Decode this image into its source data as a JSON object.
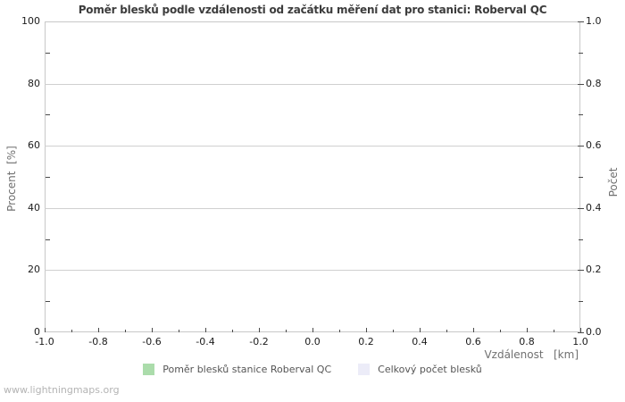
{
  "title": "Poměr blesků podle vzdálenosti od začátku měření dat pro stanici: Roberval QC",
  "watermark": "www.lightningmaps.org",
  "axes": {
    "left_label": "Procent  [%]",
    "right_label": "Počet",
    "bottom_label": "Vzdálenost   [km]"
  },
  "legend": {
    "items": [
      {
        "label": "Poměr blesků stanice Roberval QC",
        "color": "#abdcab"
      },
      {
        "label": "Celkový počet blesků",
        "color": "#ececf8"
      }
    ]
  },
  "colors": {
    "background": "#ffffff",
    "grid": "#d0d0d0",
    "plot_border": "#c8c8c8",
    "tick_mark": "#4a4a4a",
    "title_text": "#3c3c3c",
    "tick_text": "#1c1c1c",
    "axis_label_text": "#707070",
    "legend_text": "#555555",
    "watermark_text": "#b4b4b4"
  },
  "chart_data": {
    "type": "bar",
    "title": "Poměr blesků podle vzdálenosti od začátku měření dat pro stanici: Roberval QC",
    "xlabel": "Vzdálenost [km]",
    "ylabel_left": "Procent [%]",
    "ylabel_right": "Počet",
    "xlim": [
      -1.0,
      1.0
    ],
    "ylim_left": [
      0,
      100
    ],
    "ylim_right": [
      0.0,
      1.0
    ],
    "x_tick_labels": [
      "-1.0",
      "-0.8",
      "-0.6",
      "-0.4",
      "-0.2",
      "0.0",
      "0.2",
      "0.4",
      "0.6",
      "0.8",
      "1.0"
    ],
    "y_tick_labels_left": [
      "0",
      "20",
      "40",
      "60",
      "80",
      "100"
    ],
    "y_tick_labels_right": [
      "0.0",
      "0.2",
      "0.4",
      "0.6",
      "0.8",
      "1.0"
    ],
    "grid": "horizontal-major-only",
    "legend_position": "bottom-center",
    "series": [
      {
        "name": "Poměr blesků stanice Roberval QC",
        "color": "#abdcab",
        "axis": "left",
        "values": []
      },
      {
        "name": "Celkový počet blesků",
        "color": "#ececf8",
        "axis": "right",
        "values": []
      }
    ]
  }
}
